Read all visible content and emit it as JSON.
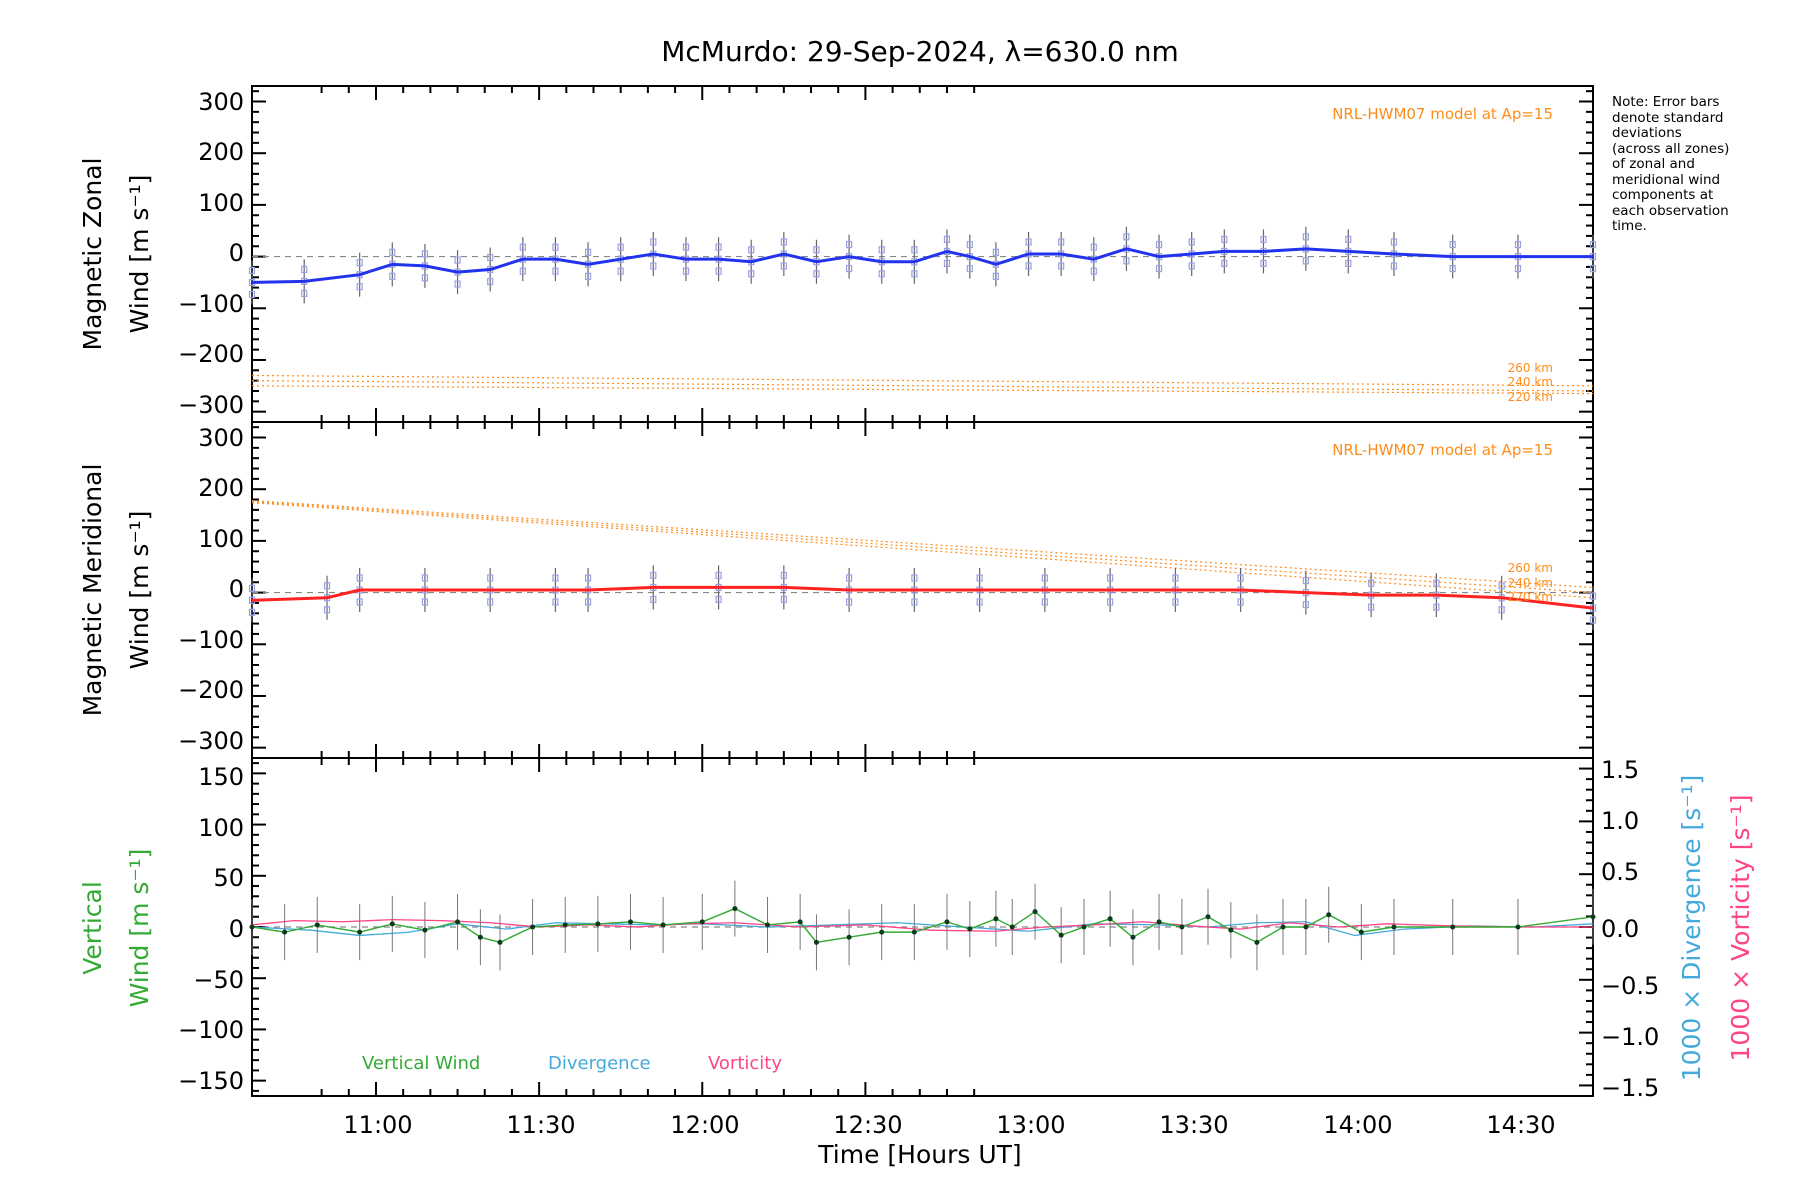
{
  "chart_data": {
    "title": "McMurdo: 29-Sep-2024, λ=630.0 nm",
    "xlabel": "Time [Hours UT]",
    "xlim": [
      10.62,
      14.73
    ],
    "xticks": [
      "11:00",
      "11:30",
      "12:00",
      "12:30",
      "13:00",
      "13:30",
      "14:00",
      "14:30"
    ],
    "note": [
      "Note: Error bars",
      "denote standard",
      "deviations",
      "(across all zones)",
      "of zonal and",
      "meridional wind",
      "components at",
      "each observation",
      "time."
    ],
    "panels": [
      {
        "type": "line",
        "ylabel_line1": "Magnetic Zonal",
        "ylabel_line2": "Wind [m s⁻¹]",
        "ylim": [
          -320,
          330
        ],
        "yticks": [
          "300",
          "200",
          "100",
          "0",
          "−100",
          "−200",
          "−300"
        ],
        "model_label": "NRL-HWM07 model at Ap=15",
        "model_altitudes": [
          "260 km",
          "240 km",
          "220 km"
        ],
        "colors": {
          "fit": "#2233ee",
          "model": "#ff8c1a",
          "zones": "#9aa0e6"
        },
        "series": [
          {
            "x": [
              10.62,
              10.78,
              10.95,
              11.05,
              11.15,
              11.25,
              11.35,
              11.45,
              11.55,
              11.65,
              11.75,
              11.85,
              11.95,
              12.05,
              12.15,
              12.25,
              12.35,
              12.45,
              12.55,
              12.65,
              12.75,
              12.82,
              12.9,
              13.0,
              13.1,
              13.2,
              13.3,
              13.4,
              13.5,
              13.6,
              13.72,
              13.85,
              13.98,
              14.12,
              14.3,
              14.5,
              14.73
            ],
            "values": [
              -50,
              -48,
              -35,
              -15,
              -18,
              -30,
              -25,
              -5,
              -5,
              -15,
              -5,
              5,
              -5,
              -5,
              -10,
              5,
              -10,
              0,
              -10,
              -10,
              10,
              0,
              -15,
              5,
              5,
              -5,
              15,
              0,
              5,
              10,
              10,
              15,
              10,
              5,
              0,
              0,
              0
            ]
          }
        ],
        "model_series": [
          {
            "name": "260 km",
            "x0": 10.62,
            "y0": -230,
            "x1": 14.73,
            "y1": -250
          },
          {
            "name": "240 km",
            "x0": 10.62,
            "y0": -240,
            "x1": 14.73,
            "y1": -260
          },
          {
            "name": "220 km",
            "x0": 10.62,
            "y0": -250,
            "x1": 14.73,
            "y1": -265
          }
        ]
      },
      {
        "type": "line",
        "ylabel_line1": "Magnetic Meridional",
        "ylabel_line2": "Wind [m s⁻¹]",
        "ylim": [
          -320,
          330
        ],
        "yticks": [
          "300",
          "200",
          "100",
          "0",
          "−100",
          "−200",
          "−300"
        ],
        "model_label": "NRL-HWM07 model at Ap=15",
        "model_altitudes": [
          "260 km",
          "240 km",
          "220 km"
        ],
        "colors": {
          "fit": "#ff2222",
          "model": "#ff8c1a",
          "zones": "#9aa0e6"
        },
        "series": [
          {
            "x": [
              10.62,
              10.85,
              10.95,
              11.15,
              11.35,
              11.55,
              11.65,
              11.85,
              12.05,
              12.25,
              12.45,
              12.65,
              12.85,
              13.05,
              13.25,
              13.45,
              13.65,
              13.85,
              14.05,
              14.25,
              14.45,
              14.73
            ],
            "values": [
              -15,
              -10,
              5,
              5,
              5,
              5,
              5,
              10,
              10,
              10,
              5,
              5,
              5,
              5,
              5,
              5,
              5,
              0,
              -5,
              -5,
              -10,
              -30
            ]
          }
        ],
        "model_series": [
          {
            "name": "260 km",
            "x0": 10.62,
            "y0": 178,
            "x1": 14.73,
            "y1": 10
          },
          {
            "name": "240 km",
            "x0": 10.62,
            "y0": 176,
            "x1": 14.73,
            "y1": 0
          },
          {
            "name": "220 km",
            "x0": 10.62,
            "y0": 174,
            "x1": 14.73,
            "y1": -10
          }
        ]
      },
      {
        "type": "line",
        "ylabel_line1": "Vertical",
        "ylabel_line2": "Wind [m s⁻¹]",
        "ylim": [
          -165,
          165
        ],
        "yticks": [
          "150",
          "100",
          "50",
          "0",
          "−50",
          "−100",
          "−150"
        ],
        "y2lim": [
          -1.6,
          1.6
        ],
        "y2ticks": [
          "1.5",
          "1.0",
          "0.5",
          "0.0",
          "−0.5",
          "−1.0",
          "−1.5"
        ],
        "y2label_div": "1000 × Divergence [s⁻¹]",
        "y2label_vort": "1000 × Vorticity [s⁻¹]",
        "legend": [
          "Vertical Wind",
          "Divergence",
          "Vorticity"
        ],
        "colors": {
          "vertical": "#33aa33",
          "divergence": "#44aadd",
          "vorticity": "#ff4488"
        },
        "series": [
          {
            "name": "Vertical Wind",
            "x": [
              10.62,
              10.72,
              10.82,
              10.95,
              11.05,
              11.15,
              11.25,
              11.32,
              11.38,
              11.48,
              11.58,
              11.68,
              11.78,
              11.88,
              12.0,
              12.1,
              12.2,
              12.3,
              12.35,
              12.45,
              12.55,
              12.65,
              12.75,
              12.82,
              12.9,
              12.95,
              13.02,
              13.1,
              13.17,
              13.25,
              13.32,
              13.4,
              13.47,
              13.55,
              13.62,
              13.7,
              13.78,
              13.85,
              13.92,
              14.02,
              14.12,
              14.3,
              14.5,
              14.73
            ],
            "values": [
              0,
              -5,
              2,
              -5,
              3,
              -3,
              5,
              -10,
              -15,
              0,
              2,
              3,
              5,
              2,
              5,
              18,
              2,
              5,
              -15,
              -10,
              -5,
              -5,
              5,
              -2,
              8,
              0,
              15,
              -8,
              0,
              8,
              -10,
              5,
              0,
              10,
              -3,
              -15,
              0,
              0,
              12,
              -5,
              0,
              0,
              0,
              10
            ]
          },
          {
            "name": "Divergence",
            "x": [
              10.62,
              10.8,
              10.95,
              11.1,
              11.25,
              11.4,
              11.55,
              11.7,
              11.85,
              12.0,
              12.2,
              12.4,
              12.6,
              12.8,
              13.0,
              13.2,
              13.4,
              13.55,
              13.7,
              13.85,
              14.0,
              14.15,
              14.35,
              14.55,
              14.73
            ],
            "values": [
              0.0,
              -0.03,
              -0.08,
              -0.05,
              0.03,
              -0.02,
              0.04,
              0.03,
              0.02,
              0.03,
              0.0,
              0.02,
              0.04,
              0.0,
              -0.04,
              0.03,
              0.02,
              0.0,
              0.04,
              0.05,
              -0.08,
              -0.02,
              0.01,
              0.0,
              0.03
            ]
          },
          {
            "name": "Vorticity",
            "x": [
              10.62,
              10.75,
              10.9,
              11.05,
              11.2,
              11.35,
              11.5,
              11.65,
              11.8,
              11.95,
              12.1,
              12.3,
              12.5,
              12.7,
              12.9,
              13.05,
              13.2,
              13.35,
              13.5,
              13.65,
              13.8,
              13.95,
              14.1,
              14.3,
              14.5,
              14.73
            ],
            "values": [
              0.02,
              0.06,
              0.05,
              0.07,
              0.06,
              0.04,
              0.0,
              0.02,
              0.0,
              0.03,
              0.04,
              0.0,
              0.02,
              -0.03,
              -0.04,
              0.0,
              0.02,
              0.05,
              0.01,
              -0.02,
              0.04,
              0.0,
              0.03,
              0.01,
              0.0,
              0.0
            ]
          }
        ]
      }
    ]
  }
}
